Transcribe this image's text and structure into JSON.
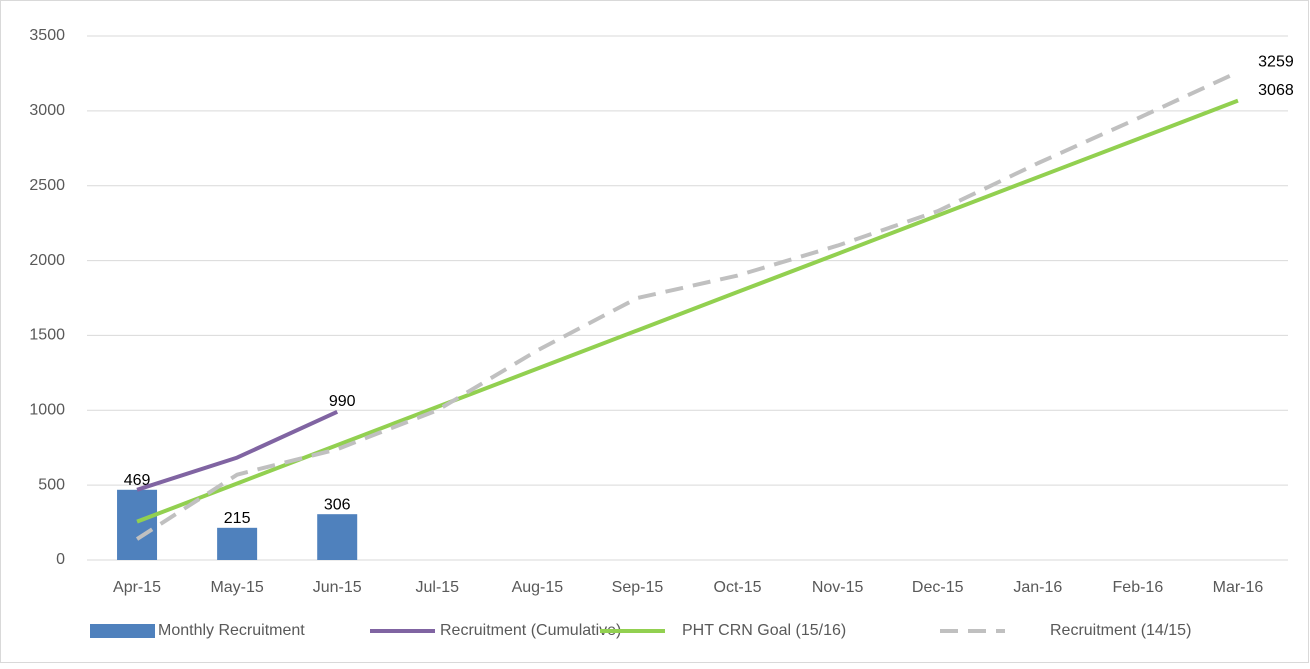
{
  "chart_data": {
    "type": "combo",
    "categories": [
      "Apr-15",
      "May-15",
      "Jun-15",
      "Jul-15",
      "Aug-15",
      "Sep-15",
      "Oct-15",
      "Nov-15",
      "Dec-15",
      "Jan-16",
      "Feb-16",
      "Mar-16"
    ],
    "series": [
      {
        "name": "Monthly Recruitment",
        "type": "bar",
        "color": "#4f81bd",
        "values": [
          469,
          215,
          306,
          null,
          null,
          null,
          null,
          null,
          null,
          null,
          null,
          null
        ]
      },
      {
        "name": "Recruitment (Cumulative)",
        "type": "line",
        "color": "#8064a2",
        "values": [
          469,
          684,
          990,
          null,
          null,
          null,
          null,
          null,
          null,
          null,
          null,
          null
        ]
      },
      {
        "name": "PHT CRN Goal (15/16)",
        "type": "line",
        "color": "#92d050",
        "values": [
          256,
          511,
          767,
          1023,
          1278,
          1534,
          1790,
          2045,
          2301,
          2557,
          2812,
          3068
        ]
      },
      {
        "name": "Recruitment (14/15)",
        "type": "line",
        "color": "#c0c0c0",
        "dashed": true,
        "values": [
          140,
          570,
          740,
          1000,
          1400,
          1750,
          1900,
          2100,
          2330,
          2650,
          2950,
          3259
        ]
      }
    ],
    "ylim": [
      0,
      3500
    ],
    "yticks": [
      0,
      500,
      1000,
      1500,
      2000,
      2500,
      3000,
      3500
    ],
    "grid": true,
    "legend": "bottom"
  }
}
